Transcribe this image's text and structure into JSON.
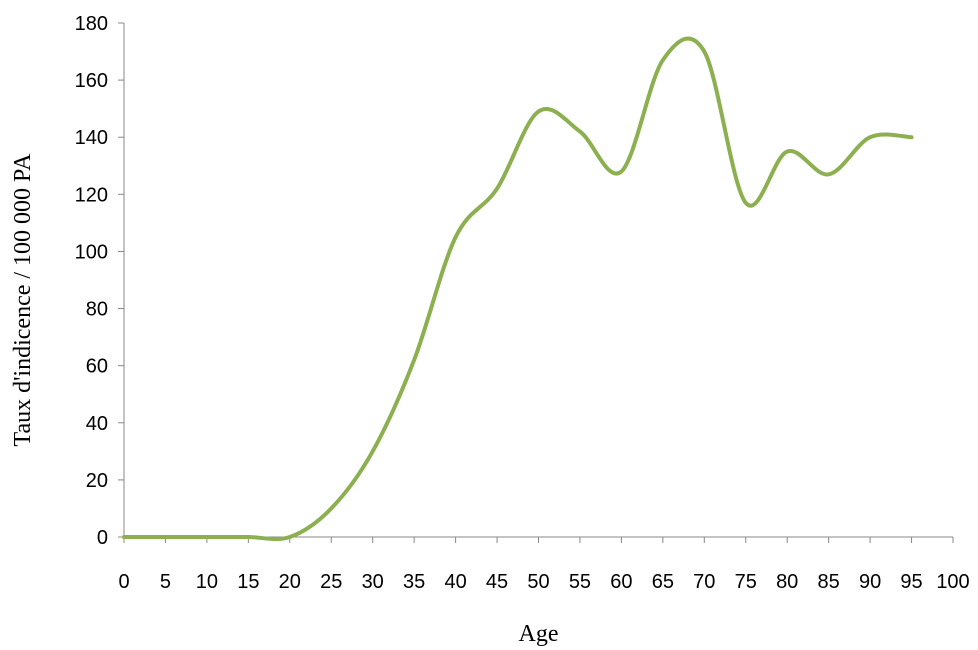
{
  "chart_data": {
    "type": "line",
    "xlabel": "Age",
    "ylabel": "Taux d'indicence / 100 000 PA",
    "xlim": [
      0,
      100
    ],
    "ylim": [
      0,
      180
    ],
    "xticks": [
      0,
      5,
      10,
      15,
      20,
      25,
      30,
      35,
      40,
      45,
      50,
      55,
      60,
      65,
      70,
      75,
      80,
      85,
      90,
      95,
      100
    ],
    "yticks": [
      0,
      20,
      40,
      60,
      80,
      100,
      120,
      140,
      160,
      180
    ],
    "grid": false,
    "legend": "none",
    "series": [
      {
        "color": "#8cb050",
        "smooth": true,
        "x": [
          0,
          5,
          10,
          15,
          20,
          25,
          30,
          35,
          40,
          45,
          50,
          55,
          60,
          65,
          70,
          75,
          80,
          85,
          90,
          95
        ],
        "y": [
          0,
          0,
          0,
          0,
          0,
          10,
          30,
          62,
          105,
          122,
          149,
          142,
          128,
          167,
          170,
          117,
          135,
          127,
          140,
          140
        ]
      }
    ]
  }
}
